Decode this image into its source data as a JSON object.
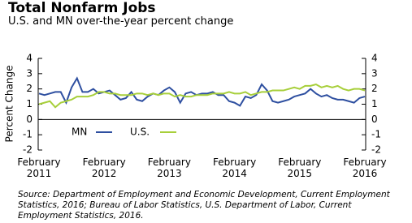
{
  "chart_data": {
    "type": "line",
    "title": "Total Nonfarm Jobs",
    "subtitle": "U.S. and MN over-the-year percent change",
    "y_label": "Percent Change",
    "categories": [
      "February 2011",
      null,
      null,
      null,
      null,
      null,
      null,
      null,
      null,
      null,
      null,
      null,
      "February 2012",
      null,
      null,
      null,
      null,
      null,
      null,
      null,
      null,
      null,
      null,
      null,
      "February 2013",
      null,
      null,
      null,
      null,
      null,
      null,
      null,
      null,
      null,
      null,
      null,
      "February 2014",
      null,
      null,
      null,
      null,
      null,
      null,
      null,
      null,
      null,
      null,
      null,
      "February 2015",
      null,
      null,
      null,
      null,
      null,
      null,
      null,
      null,
      null,
      null,
      null,
      "February 2016"
    ],
    "series": [
      {
        "name": "MN",
        "color": "#2e4fa0",
        "values": [
          1.7,
          1.6,
          1.7,
          1.8,
          1.8,
          1.1,
          2.1,
          2.7,
          1.8,
          1.8,
          2.0,
          1.7,
          1.8,
          1.9,
          1.6,
          1.3,
          1.4,
          1.8,
          1.3,
          1.2,
          1.5,
          1.7,
          1.6,
          1.9,
          2.1,
          1.8,
          1.1,
          1.7,
          1.8,
          1.6,
          1.7,
          1.7,
          1.8,
          1.6,
          1.6,
          1.2,
          1.1,
          0.9,
          1.5,
          1.4,
          1.6,
          2.3,
          1.9,
          1.2,
          1.1,
          1.2,
          1.3,
          1.5,
          1.6,
          1.7,
          2.0,
          1.7,
          1.5,
          1.6,
          1.4,
          1.3,
          1.3,
          1.2,
          1.1,
          1.4,
          1.5
        ]
      },
      {
        "name": "U.S.",
        "color": "#a7cf3a",
        "values": [
          1.0,
          1.1,
          1.2,
          0.8,
          1.1,
          1.2,
          1.3,
          1.5,
          1.5,
          1.5,
          1.6,
          1.8,
          1.8,
          1.7,
          1.7,
          1.6,
          1.6,
          1.6,
          1.7,
          1.7,
          1.6,
          1.7,
          1.6,
          1.7,
          1.7,
          1.5,
          1.6,
          1.5,
          1.5,
          1.6,
          1.6,
          1.6,
          1.7,
          1.7,
          1.7,
          1.8,
          1.7,
          1.7,
          1.8,
          1.6,
          1.7,
          1.8,
          1.8,
          1.9,
          1.9,
          1.9,
          2.0,
          2.1,
          2.0,
          2.2,
          2.2,
          2.3,
          2.1,
          2.2,
          2.1,
          2.2,
          2.0,
          1.9,
          2.0,
          2.0,
          1.9
        ]
      }
    ],
    "ylim": [
      -2,
      4
    ],
    "yticks": [
      -2,
      -1,
      0,
      1,
      2,
      3,
      4
    ],
    "source": "Source: Department of Employment and Economic Development, Current Employment Statistics, 2016; Bureau of Labor Statistics, U.S. Department of Labor, Current Employment Statistics, 2016."
  }
}
